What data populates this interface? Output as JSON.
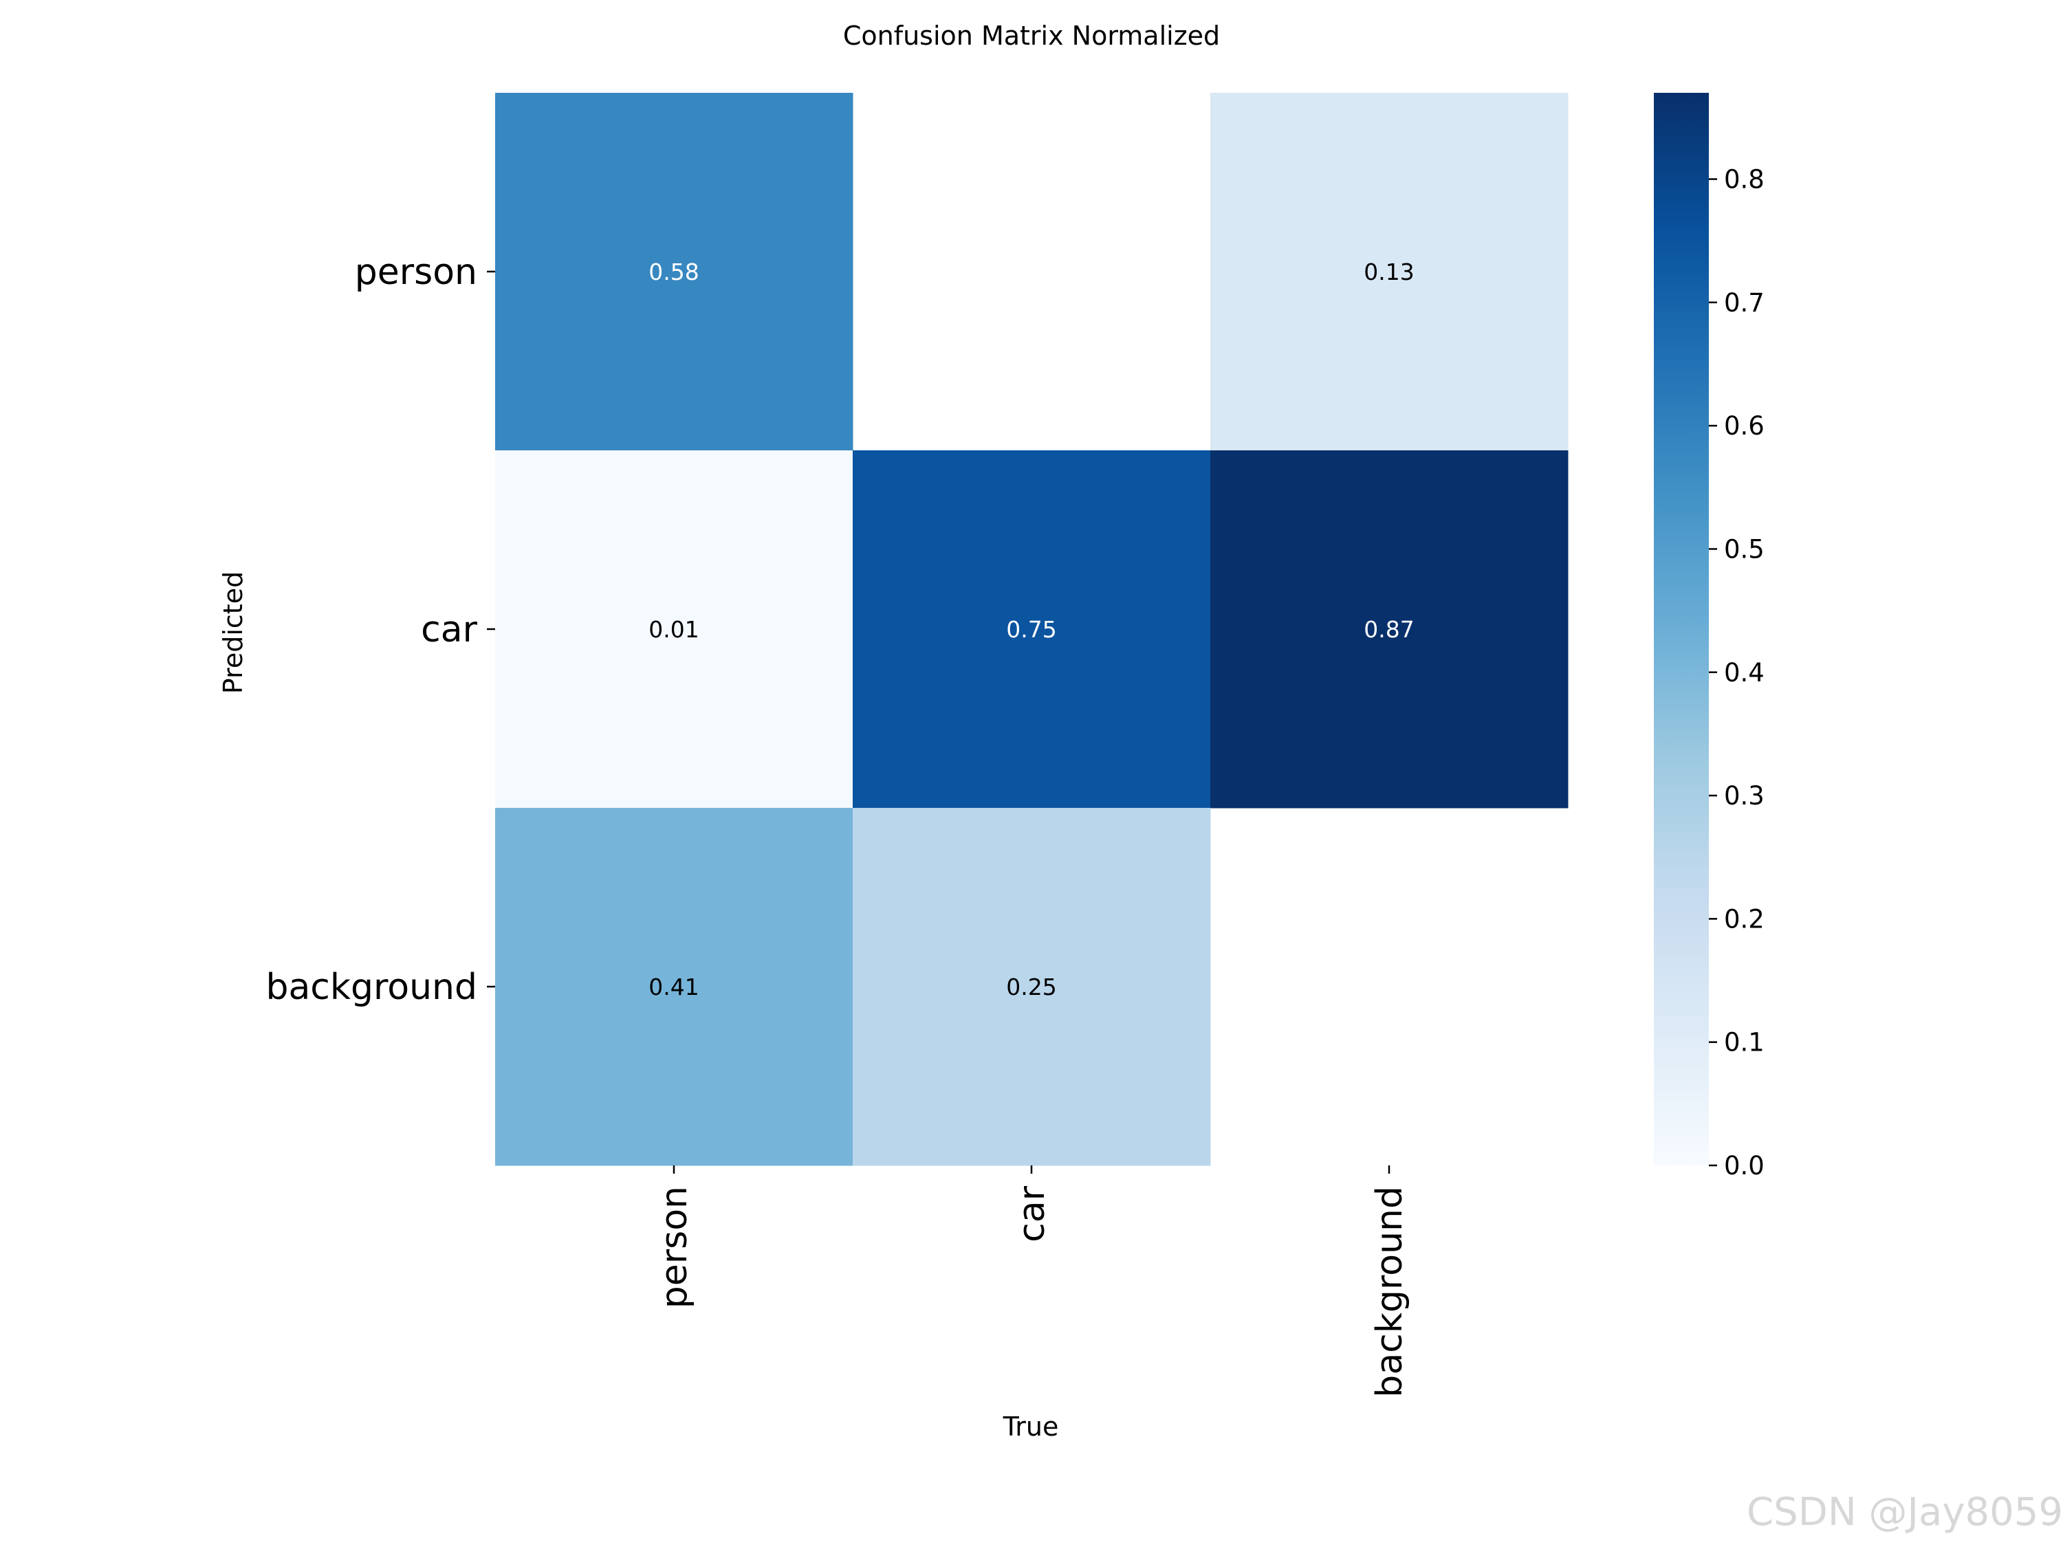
{
  "chart_data": {
    "type": "heatmap",
    "title": "Confusion Matrix Normalized",
    "xlabel": "True",
    "ylabel": "Predicted",
    "x_categories": [
      "person",
      "car",
      "background"
    ],
    "y_categories": [
      "person",
      "car",
      "background"
    ],
    "values": [
      [
        0.58,
        null,
        0.13
      ],
      [
        0.01,
        0.75,
        0.87
      ],
      [
        0.41,
        0.25,
        null
      ]
    ],
    "cell_labels": [
      [
        "0.58",
        "",
        "0.13"
      ],
      [
        "0.01",
        "0.75",
        "0.87"
      ],
      [
        "0.41",
        "0.25",
        ""
      ]
    ],
    "colormap": "Blues",
    "colorbar": {
      "range": [
        0.0,
        0.87
      ],
      "ticks": [
        0.0,
        0.1,
        0.2,
        0.3,
        0.4,
        0.5,
        0.6,
        0.7,
        0.8
      ],
      "tick_labels": [
        "0.0",
        "0.1",
        "0.2",
        "0.3",
        "0.4",
        "0.5",
        "0.6",
        "0.7",
        "0.8"
      ]
    },
    "grid": false
  },
  "watermark": "CSDN @Jay8059"
}
